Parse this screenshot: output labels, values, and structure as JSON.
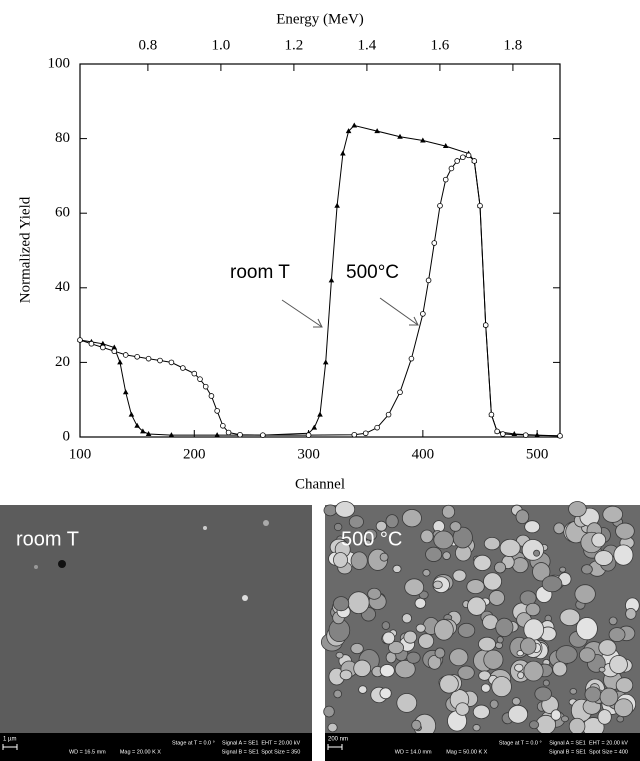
{
  "chart_data": {
    "type": "line",
    "xlabel": "Channel",
    "ylabel": "Normalized Yield",
    "x2label": "Energy (MeV)",
    "xlim": [
      100,
      520
    ],
    "xticks": [
      100,
      200,
      300,
      400,
      500
    ],
    "ylim": [
      0,
      100
    ],
    "yticks": [
      0,
      20,
      40,
      60,
      80,
      100
    ],
    "x2lim": [
      0.614,
      1.929
    ],
    "x2ticks": [
      0.8,
      1.0,
      1.2,
      1.4,
      1.6,
      1.8
    ],
    "annotations": [
      "room T",
      "500°C"
    ],
    "series": [
      {
        "name": "room T",
        "color": "#000000",
        "marker": "triangle",
        "x": [
          100,
          110,
          120,
          130,
          135,
          140,
          145,
          150,
          155,
          160,
          180,
          220,
          260,
          300,
          305,
          310,
          315,
          320,
          325,
          330,
          335,
          340,
          360,
          380,
          400,
          420,
          440,
          445,
          450,
          455,
          460,
          465,
          480,
          500,
          520
        ],
        "values": [
          26,
          25.5,
          25,
          24,
          20,
          12,
          6,
          3,
          1.5,
          0.8,
          0.5,
          0.5,
          0.5,
          1,
          2.5,
          6,
          20,
          42,
          62,
          76,
          82,
          83.5,
          82,
          80.5,
          79.5,
          78,
          76,
          74,
          62,
          30,
          6,
          1.5,
          0.8,
          0.5,
          0.3
        ]
      },
      {
        "name": "500°C",
        "color": "#000000",
        "marker": "circle",
        "x": [
          100,
          110,
          120,
          130,
          140,
          150,
          160,
          170,
          180,
          190,
          200,
          205,
          210,
          215,
          220,
          225,
          230,
          240,
          260,
          300,
          340,
          350,
          360,
          370,
          380,
          390,
          400,
          405,
          410,
          415,
          420,
          425,
          430,
          435,
          440,
          445,
          450,
          455,
          460,
          465,
          470,
          490,
          520
        ],
        "values": [
          26,
          25,
          24,
          23,
          22,
          21.5,
          21,
          20.5,
          20,
          18.5,
          17,
          15.5,
          13.5,
          11,
          7,
          3,
          1.2,
          0.6,
          0.5,
          0.5,
          0.6,
          1,
          2.5,
          6,
          12,
          21,
          33,
          42,
          52,
          62,
          69,
          72,
          74,
          75,
          75.5,
          74,
          62,
          30,
          6,
          1.5,
          0.8,
          0.5,
          0.3
        ]
      }
    ]
  },
  "sem_images": [
    {
      "label": "room T",
      "scale_bar": "1 µm",
      "info": [
        "Stage at T =  0.0 °",
        "Signal A = SE1",
        "EHT = 20.00 kV",
        "WD = 16.5 mm",
        "Mag =  20.00 K X",
        "Signal B = SE1",
        "Spot Size = 350"
      ]
    },
    {
      "label": "500 °C",
      "scale_bar": "200 nm",
      "info": [
        "Stage at T =  0.0 °",
        "Signal A = SE1",
        "EHT = 20.00 kV",
        "WD = 14.0 mm",
        "Mag =  50.00 K X",
        "Signal B = SE1",
        "Spot Size = 400"
      ]
    }
  ]
}
